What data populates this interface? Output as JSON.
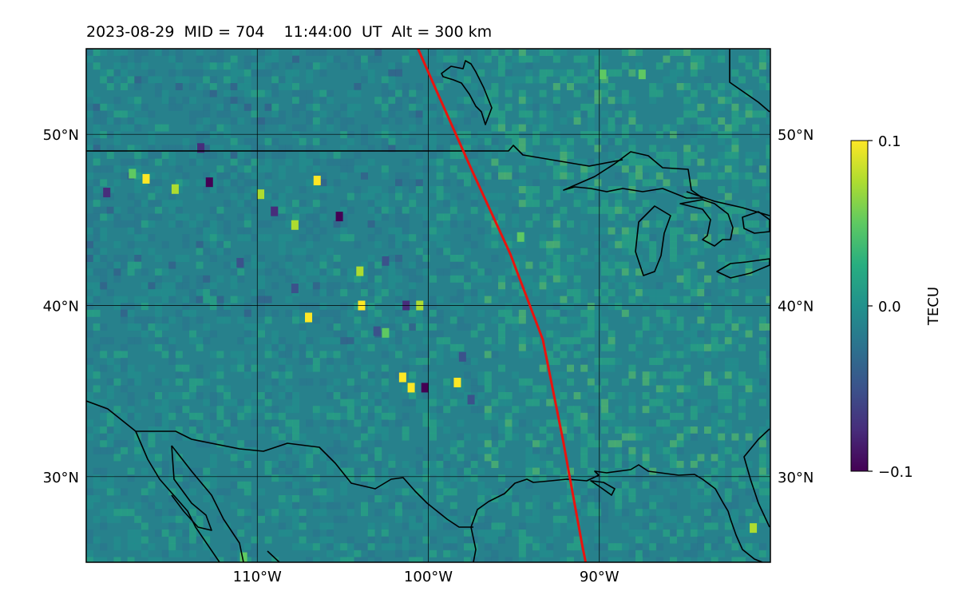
{
  "title": "2023-08-29  MID = 704    11:44:00  UT  Alt = 300 km",
  "map": {
    "projection": "plate-carree",
    "lon_range": [
      -120,
      -80
    ],
    "lat_range": [
      25,
      55
    ],
    "gridlines": true,
    "lat_ticks": [
      {
        "value": 50,
        "label": "50°N"
      },
      {
        "value": 40,
        "label": "40°N"
      },
      {
        "value": 30,
        "label": "30°N"
      }
    ],
    "lon_ticks": [
      {
        "value": -110,
        "label": "110°W"
      },
      {
        "value": -100,
        "label": "100°W"
      },
      {
        "value": -90,
        "label": "90°W"
      }
    ],
    "field": "TEC perturbation (detrended total electron content)",
    "background_value": 0.0,
    "anomalies": [
      {
        "lon": -116.5,
        "lat": 47.4,
        "value": 0.09
      },
      {
        "lon": -112.8,
        "lat": 47.2,
        "value": -0.09
      },
      {
        "lon": -114.8,
        "lat": 46.8,
        "value": 0.08
      },
      {
        "lon": -113.3,
        "lat": 49.2,
        "value": -0.08
      },
      {
        "lon": -109.8,
        "lat": 46.5,
        "value": 0.07
      },
      {
        "lon": -109.0,
        "lat": 45.5,
        "value": -0.07
      },
      {
        "lon": -106.5,
        "lat": 47.3,
        "value": 0.1
      },
      {
        "lon": -105.2,
        "lat": 45.2,
        "value": -0.1
      },
      {
        "lon": -107.8,
        "lat": 44.7,
        "value": 0.08
      },
      {
        "lon": -104.0,
        "lat": 42.0,
        "value": 0.07
      },
      {
        "lon": -103.9,
        "lat": 40.0,
        "value": 0.1
      },
      {
        "lon": -107.0,
        "lat": 39.3,
        "value": 0.1
      },
      {
        "lon": -107.8,
        "lat": 41.0,
        "value": -0.06
      },
      {
        "lon": -101.3,
        "lat": 40.0,
        "value": -0.08
      },
      {
        "lon": -100.5,
        "lat": 40.0,
        "value": 0.08
      },
      {
        "lon": -102.5,
        "lat": 38.4,
        "value": 0.06
      },
      {
        "lon": -101.5,
        "lat": 35.8,
        "value": 0.09
      },
      {
        "lon": -100.2,
        "lat": 35.2,
        "value": -0.1
      },
      {
        "lon": -101.0,
        "lat": 35.2,
        "value": 0.1
      },
      {
        "lon": -98.3,
        "lat": 35.5,
        "value": 0.09
      },
      {
        "lon": -94.6,
        "lat": 44.0,
        "value": 0.06
      },
      {
        "lon": -89.8,
        "lat": 53.5,
        "value": 0.06
      },
      {
        "lon": -87.5,
        "lat": 53.5,
        "value": 0.05
      },
      {
        "lon": -81.0,
        "lat": 27.0,
        "value": 0.08
      },
      {
        "lon": -110.8,
        "lat": 25.3,
        "value": 0.05
      },
      {
        "lon": -102.5,
        "lat": 42.6,
        "value": -0.05
      },
      {
        "lon": -98.0,
        "lat": 37.0,
        "value": -0.05
      },
      {
        "lon": -118.8,
        "lat": 46.6,
        "value": -0.07
      },
      {
        "lon": -117.3,
        "lat": 47.7,
        "value": 0.06
      },
      {
        "lon": -103.0,
        "lat": 38.5,
        "value": -0.06
      },
      {
        "lon": -97.5,
        "lat": 34.5,
        "value": -0.05
      },
      {
        "lon": -111.0,
        "lat": 42.5,
        "value": -0.05
      }
    ],
    "track": {
      "color": "#e8140f",
      "points": [
        [
          -100.6,
          55.0
        ],
        [
          -99.5,
          52.5
        ],
        [
          -97.5,
          48.0
        ],
        [
          -95.2,
          43.0
        ],
        [
          -93.3,
          38.0
        ],
        [
          -92.1,
          32.0
        ],
        [
          -91.7,
          29.8
        ],
        [
          -91.0,
          26.0
        ],
        [
          -90.8,
          25.0
        ]
      ]
    },
    "coastline_color": "#000000"
  },
  "colorbar": {
    "label": "TECU",
    "colormap": "viridis",
    "ticks": [
      {
        "value": 0.1,
        "label": "0.1"
      },
      {
        "value": 0.0,
        "label": "0.0"
      },
      {
        "value": -0.1,
        "label": "−0.1"
      }
    ],
    "range": [
      -0.1,
      0.1
    ]
  }
}
